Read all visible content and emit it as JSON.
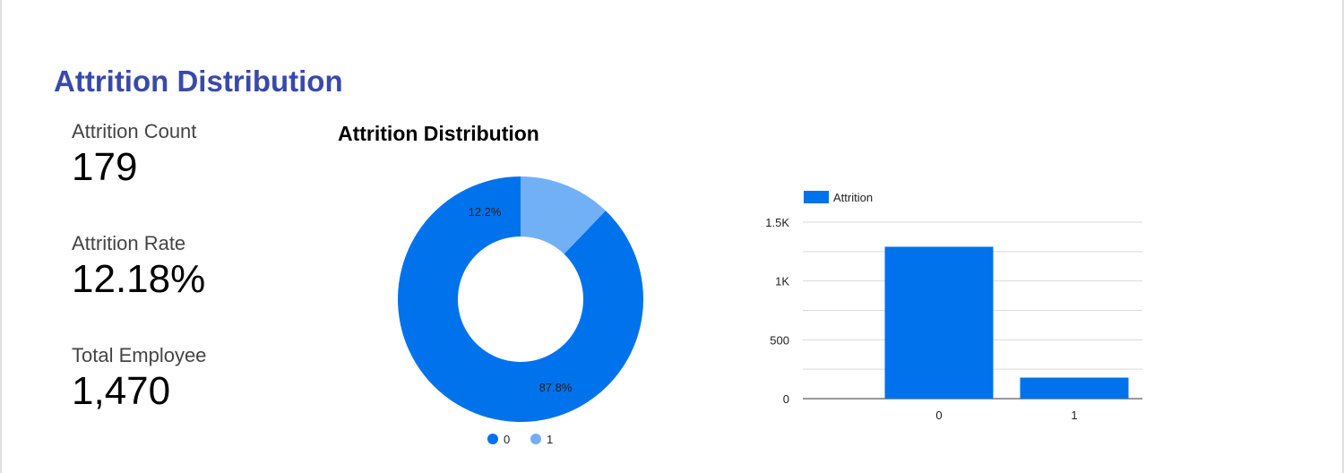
{
  "page": {
    "title": "Attrition Distribution"
  },
  "kpis": {
    "count": {
      "label": "Attrition Count",
      "value": "179"
    },
    "rate": {
      "label": "Attrition Rate",
      "value": "12.18%"
    },
    "total": {
      "label": "Total Employee",
      "value": "1,470"
    }
  },
  "colors": {
    "title": "#3949ab",
    "series_0": "#0072ec",
    "series_1": "#72b0f6",
    "gridline": "#d9d9d9"
  },
  "chart_data": [
    {
      "type": "pie",
      "variant": "donut",
      "title": "Attrition Distribution",
      "categories": [
        "0",
        "1"
      ],
      "values": [
        1291,
        179
      ],
      "slice_labels": [
        "87.8%",
        "12.2%"
      ],
      "colors": [
        "#0072ec",
        "#72b0f6"
      ],
      "legend": "bottom"
    },
    {
      "type": "bar",
      "title": "",
      "categories": [
        "0",
        "1"
      ],
      "series": [
        {
          "name": "Attrition",
          "values": [
            1291,
            179
          ],
          "color": "#0072ec"
        }
      ],
      "ylim": [
        0,
        1500
      ],
      "yticks": [
        0,
        500,
        1000,
        1500
      ],
      "ytick_labels": [
        "0",
        "500",
        "1K",
        "1.5K"
      ],
      "grid": true,
      "legend": "top-left",
      "xlabel": "",
      "ylabel": ""
    }
  ]
}
